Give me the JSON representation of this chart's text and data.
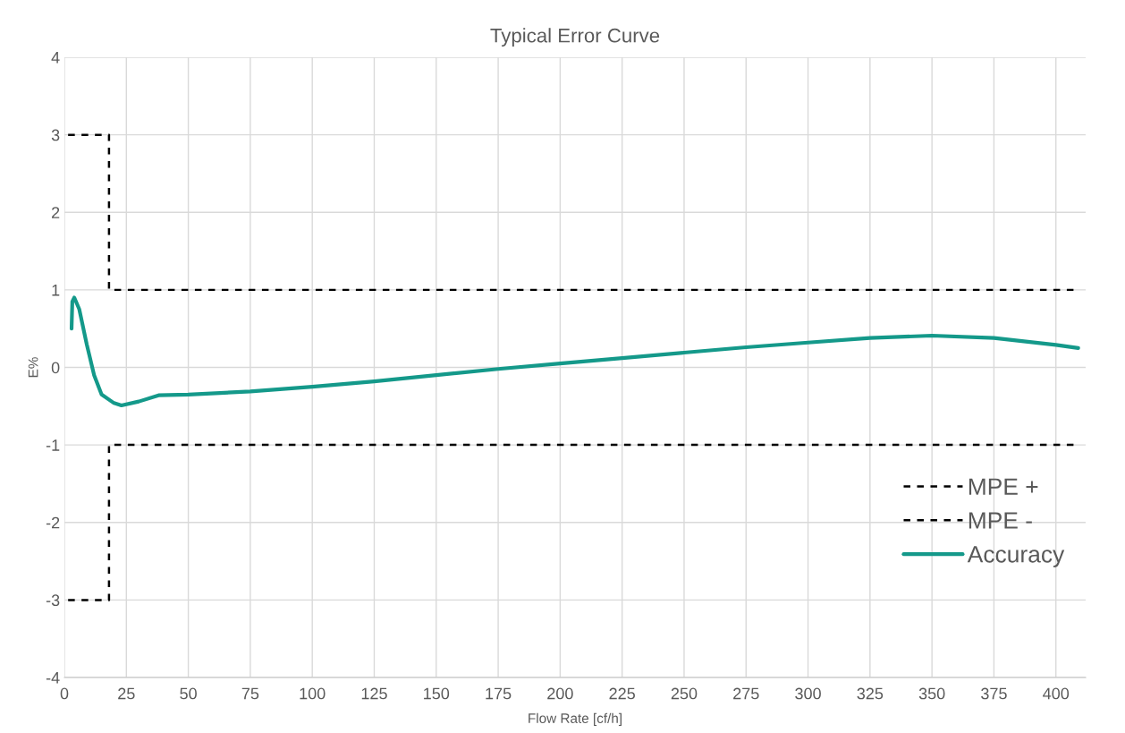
{
  "chart_data": {
    "type": "line",
    "title": "Typical Error Curve",
    "xlabel": "Flow Rate [cf/h]",
    "ylabel": "E%",
    "xlim": [
      0,
      412
    ],
    "xticks": [
      0,
      25,
      50,
      75,
      100,
      125,
      150,
      175,
      200,
      225,
      250,
      275,
      300,
      325,
      350,
      375,
      400
    ],
    "ylim": [
      -4,
      4
    ],
    "yticks": [
      -4,
      -3,
      -2,
      -1,
      0,
      1,
      2,
      3,
      4
    ],
    "grid": true,
    "legend": "right",
    "series": [
      {
        "name": "MPE +",
        "color": "#000000",
        "line_style": "dashed",
        "x": [
          1.5,
          18,
          18,
          408
        ],
        "values": [
          3,
          3,
          1,
          1
        ]
      },
      {
        "name": "MPE -",
        "color": "#000000",
        "line_style": "dashed",
        "x": [
          1.5,
          18,
          18,
          408
        ],
        "values": [
          -3,
          -3,
          -1,
          -1
        ]
      },
      {
        "name": "Accuracy",
        "color": "#14998a",
        "line_style": "solid",
        "x": [
          2.9,
          3.2,
          4,
          6,
          9,
          12,
          15,
          20,
          23,
          30,
          38,
          50,
          75,
          100,
          125,
          150,
          175,
          200,
          225,
          250,
          275,
          300,
          325,
          350,
          375,
          400,
          409
        ],
        "values": [
          0.5,
          0.85,
          0.9,
          0.75,
          0.3,
          -0.1,
          -0.35,
          -0.46,
          -0.49,
          -0.44,
          -0.36,
          -0.35,
          -0.31,
          -0.25,
          -0.18,
          -0.1,
          -0.02,
          0.05,
          0.12,
          0.19,
          0.26,
          0.32,
          0.38,
          0.41,
          0.38,
          0.29,
          0.25
        ]
      }
    ]
  }
}
